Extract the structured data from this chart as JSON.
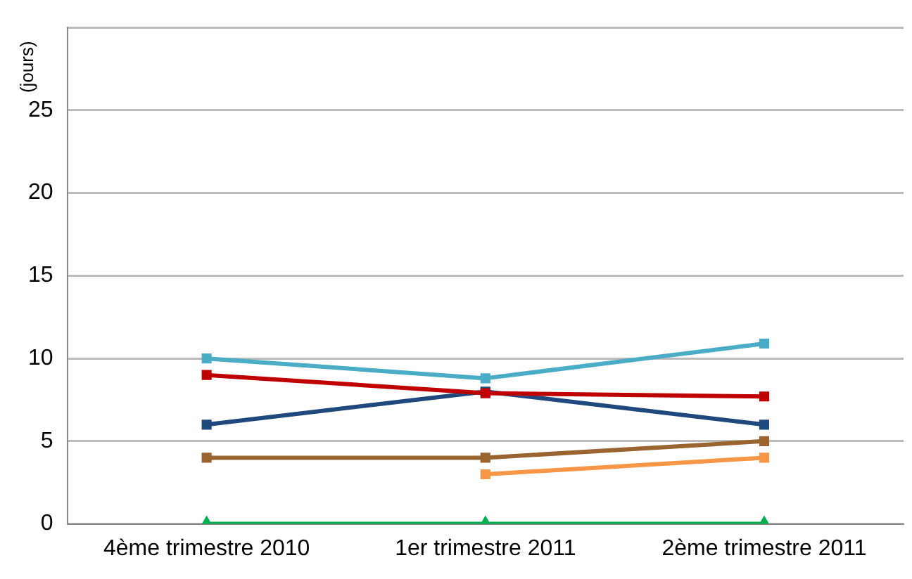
{
  "chart_data": {
    "type": "line",
    "ylabel": "(jours)",
    "categories": [
      "4ème trimestre 2010",
      "1er trimestre 2011",
      "2ème trimestre 2011"
    ],
    "series": [
      {
        "color": "#4bacc6",
        "values": [
          10,
          8.8,
          10.9
        ],
        "marker": "square"
      },
      {
        "color": "#c00000",
        "values": [
          9,
          7.9,
          7.7
        ],
        "marker": "square"
      },
      {
        "color": "#1f497d",
        "values": [
          6,
          8,
          6
        ],
        "marker": "square"
      },
      {
        "color": "#9a6430",
        "values": [
          4,
          4,
          5
        ],
        "marker": "square"
      },
      {
        "color": "#f79646",
        "values": [
          null,
          3,
          4
        ],
        "marker": "square"
      },
      {
        "color": "#00b050",
        "values": [
          0,
          0,
          0
        ],
        "marker": "triangle"
      }
    ],
    "ylim": [
      0,
      30
    ],
    "yticks": [
      0,
      5,
      10,
      15,
      20,
      25,
      {
        "value": 30,
        "label": null
      }
    ],
    "grid": "y",
    "legend": false
  }
}
